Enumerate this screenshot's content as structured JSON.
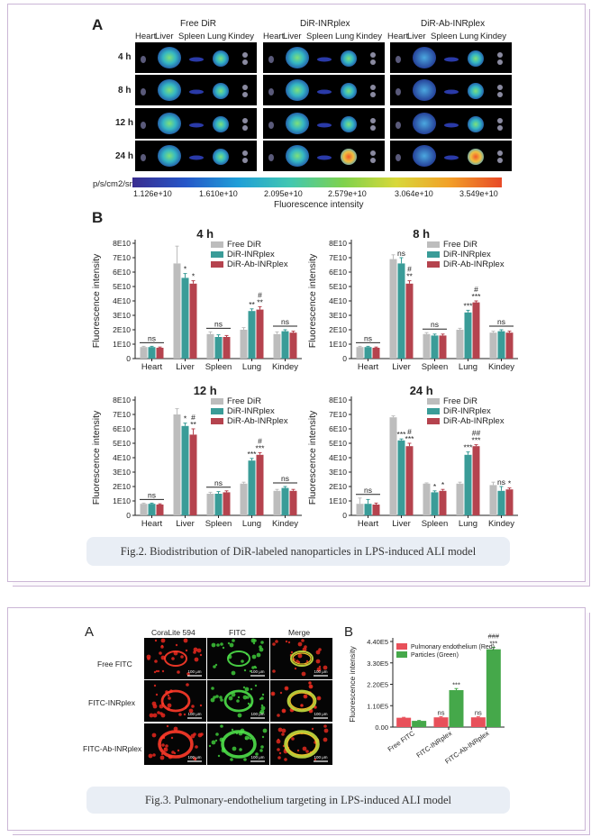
{
  "fig2": {
    "panel_a": {
      "letter": "A",
      "groups": [
        "Free DiR",
        "DiR-INRplex",
        "DiR-Ab-INRplex"
      ],
      "organs_header": [
        "Heart",
        "Liver",
        "Spleen",
        "Lung",
        "Kindey"
      ],
      "time_rows": [
        "4 h",
        "8 h",
        "12 h",
        "24 h"
      ],
      "colorbar_unit": "p/s/cm2/sr",
      "colorbar_ticks": [
        "1.126e+10",
        "1.610e+10",
        "2.095e+10",
        "2.579e+10",
        "3.064e+10",
        "3.549e+10"
      ],
      "colorbar_title": "Fluorescence intensity"
    },
    "panel_b_letter": "B",
    "caption": "Fig.2. Biodistribution of DiR-labeled nanoparticles in LPS-induced ALI model"
  },
  "fig3": {
    "panel_a": {
      "letter": "A",
      "columns": [
        "CoraLite 594",
        "FITC",
        "Merge"
      ],
      "rows": [
        "Free FITC",
        "FITC-INRplex",
        "FITC-Ab-INRplex"
      ],
      "scale_bar": "100 μm"
    },
    "panel_b_letter": "B",
    "caption": "Fig.3. Pulmonary-endothelium targeting in LPS-induced ALI model"
  },
  "chart_data": [
    {
      "type": "bar",
      "title": "4 h",
      "ylabel": "Fluorescence intensity",
      "categories": [
        "Heart",
        "Liver",
        "Spleen",
        "Lung",
        "Kindey"
      ],
      "yticks": [
        "0",
        "1E10",
        "2E10",
        "3E10",
        "4E10",
        "5E10",
        "6E10",
        "7E10",
        "8E10"
      ],
      "ylim": [
        0,
        8
      ],
      "series": [
        {
          "name": "Free DiR",
          "color": "#bdbdbd",
          "values": [
            0.8,
            6.6,
            1.7,
            2.0,
            1.7
          ],
          "err": [
            0.05,
            1.2,
            0.15,
            0.15,
            0.15
          ]
        },
        {
          "name": "DiR-INRplex",
          "color": "#3a9c98",
          "values": [
            0.8,
            5.6,
            1.5,
            3.3,
            1.9
          ],
          "err": [
            0.05,
            0.3,
            0.15,
            0.15,
            0.1
          ]
        },
        {
          "name": "DiR-Ab-INRplex",
          "color": "#b5434e",
          "values": [
            0.75,
            5.2,
            1.5,
            3.4,
            1.8
          ],
          "err": [
            0.05,
            0.2,
            0.1,
            0.2,
            0.1
          ]
        }
      ],
      "annotations": [
        {
          "cat": 0,
          "series": -1,
          "text": "ns"
        },
        {
          "cat": 1,
          "series": 1,
          "text": "*"
        },
        {
          "cat": 1,
          "series": 2,
          "text": "*"
        },
        {
          "cat": 2,
          "series": -1,
          "text": "ns"
        },
        {
          "cat": 3,
          "series": 1,
          "text": "**"
        },
        {
          "cat": 3,
          "series": 2,
          "text": "#\n**"
        },
        {
          "cat": 4,
          "series": -1,
          "text": "ns"
        }
      ]
    },
    {
      "type": "bar",
      "title": "8 h",
      "ylabel": "Fluorescence intensity",
      "categories": [
        "Heart",
        "Liver",
        "Spleen",
        "Lung",
        "Kindey"
      ],
      "yticks": [
        "0",
        "1E10",
        "2E10",
        "3E10",
        "4E10",
        "5E10",
        "6E10",
        "7E10",
        "8E10"
      ],
      "ylim": [
        0,
        8
      ],
      "series": [
        {
          "name": "Free DiR",
          "color": "#bdbdbd",
          "values": [
            0.8,
            6.9,
            1.7,
            2.0,
            1.8
          ],
          "err": [
            0.05,
            0.3,
            0.1,
            0.1,
            0.1
          ]
        },
        {
          "name": "DiR-INRplex",
          "color": "#3a9c98",
          "values": [
            0.8,
            6.6,
            1.6,
            3.2,
            1.9
          ],
          "err": [
            0.05,
            0.4,
            0.1,
            0.15,
            0.1
          ]
        },
        {
          "name": "DiR-Ab-INRplex",
          "color": "#b5434e",
          "values": [
            0.75,
            5.2,
            1.6,
            3.9,
            1.8
          ],
          "err": [
            0.05,
            0.2,
            0.1,
            0.1,
            0.1
          ]
        }
      ],
      "annotations": [
        {
          "cat": 0,
          "series": -1,
          "text": "ns"
        },
        {
          "cat": 1,
          "series": 1,
          "text": "ns"
        },
        {
          "cat": 1,
          "series": 2,
          "text": "#\n**"
        },
        {
          "cat": 2,
          "series": -1,
          "text": "ns"
        },
        {
          "cat": 3,
          "series": 1,
          "text": "***"
        },
        {
          "cat": 3,
          "series": 2,
          "text": "#\n***"
        },
        {
          "cat": 4,
          "series": -1,
          "text": "ns"
        }
      ]
    },
    {
      "type": "bar",
      "title": "12 h",
      "ylabel": "Fluorescence intensity",
      "categories": [
        "Heart",
        "Liver",
        "Spleen",
        "Lung",
        "Kindey"
      ],
      "yticks": [
        "0",
        "1E10",
        "2E10",
        "3E10",
        "4E10",
        "5E10",
        "6E10",
        "7E10",
        "8E10"
      ],
      "ylim": [
        0,
        8
      ],
      "series": [
        {
          "name": "Free DiR",
          "color": "#bdbdbd",
          "values": [
            0.8,
            7.0,
            1.5,
            2.2,
            1.7
          ],
          "err": [
            0.05,
            0.4,
            0.1,
            0.1,
            0.1
          ]
        },
        {
          "name": "DiR-INRplex",
          "color": "#3a9c98",
          "values": [
            0.8,
            6.2,
            1.5,
            3.8,
            1.9
          ],
          "err": [
            0.05,
            0.2,
            0.15,
            0.15,
            0.1
          ]
        },
        {
          "name": "DiR-Ab-INRplex",
          "color": "#b5434e",
          "values": [
            0.75,
            5.6,
            1.6,
            4.2,
            1.7
          ],
          "err": [
            0.05,
            0.4,
            0.1,
            0.15,
            0.1
          ]
        }
      ],
      "annotations": [
        {
          "cat": 0,
          "series": -1,
          "text": "ns"
        },
        {
          "cat": 1,
          "series": 1,
          "text": "*"
        },
        {
          "cat": 1,
          "series": 2,
          "text": "#\n**"
        },
        {
          "cat": 2,
          "series": -1,
          "text": "ns"
        },
        {
          "cat": 3,
          "series": 1,
          "text": "***"
        },
        {
          "cat": 3,
          "series": 2,
          "text": "#\n***"
        },
        {
          "cat": 4,
          "series": -1,
          "text": "ns"
        }
      ]
    },
    {
      "type": "bar",
      "title": "24 h",
      "ylabel": "Fluorescence intensity",
      "categories": [
        "Heart",
        "Liver",
        "Spleen",
        "Lung",
        "Kindey"
      ],
      "yticks": [
        "0",
        "1E10",
        "2E10",
        "3E10",
        "4E10",
        "5E10",
        "6E10",
        "7E10",
        "8E10"
      ],
      "ylim": [
        0,
        8
      ],
      "series": [
        {
          "name": "Free DiR",
          "color": "#bdbdbd",
          "values": [
            0.8,
            6.8,
            2.2,
            2.2,
            2.1
          ],
          "err": [
            0.4,
            0.1,
            0.05,
            0.1,
            0.2
          ]
        },
        {
          "name": "DiR-INRplex",
          "color": "#3a9c98",
          "values": [
            0.8,
            5.2,
            1.6,
            4.2,
            1.7
          ],
          "err": [
            0.3,
            0.1,
            0.1,
            0.2,
            0.3
          ]
        },
        {
          "name": "DiR-Ab-INRplex",
          "color": "#b5434e",
          "values": [
            0.75,
            4.8,
            1.7,
            4.8,
            1.8
          ],
          "err": [
            0.1,
            0.2,
            0.1,
            0.1,
            0.1
          ]
        }
      ],
      "annotations": [
        {
          "cat": 0,
          "series": -1,
          "text": "ns"
        },
        {
          "cat": 1,
          "series": 1,
          "text": "***"
        },
        {
          "cat": 1,
          "series": 2,
          "text": "#\n***"
        },
        {
          "cat": 2,
          "series": 1,
          "text": "*"
        },
        {
          "cat": 2,
          "series": 2,
          "text": "*"
        },
        {
          "cat": 3,
          "series": 1,
          "text": "***"
        },
        {
          "cat": 3,
          "series": 2,
          "text": "##\n***"
        },
        {
          "cat": 4,
          "series": 1,
          "text": "ns"
        },
        {
          "cat": 4,
          "series": 2,
          "text": "*"
        }
      ]
    },
    {
      "type": "bar",
      "ylabel": "Fluorescence intensity",
      "categories": [
        "Free FITC",
        "FITC-INRplex",
        "FITC-Ab-INRplex"
      ],
      "yticks": [
        "0.00",
        "1.10E5",
        "2.20E5",
        "3.30E5",
        "4.40E5"
      ],
      "ylim": [
        0,
        4.4
      ],
      "series": [
        {
          "name": "Pulmonary endothelium (Red)",
          "color": "#e8505a",
          "values": [
            0.48,
            0.5,
            0.5
          ],
          "err": [
            0.02,
            0.03,
            0.03
          ]
        },
        {
          "name": "Particles (Green)",
          "color": "#45a84a",
          "values": [
            0.32,
            1.9,
            4.0
          ],
          "err": [
            0.02,
            0.08,
            0.1
          ]
        }
      ],
      "annotations": [
        {
          "cat": 1,
          "series": 0,
          "text": "ns"
        },
        {
          "cat": 1,
          "series": 1,
          "text": "***"
        },
        {
          "cat": 2,
          "series": 0,
          "text": "ns"
        },
        {
          "cat": 2,
          "series": 1,
          "text": "###\n***"
        }
      ]
    }
  ]
}
